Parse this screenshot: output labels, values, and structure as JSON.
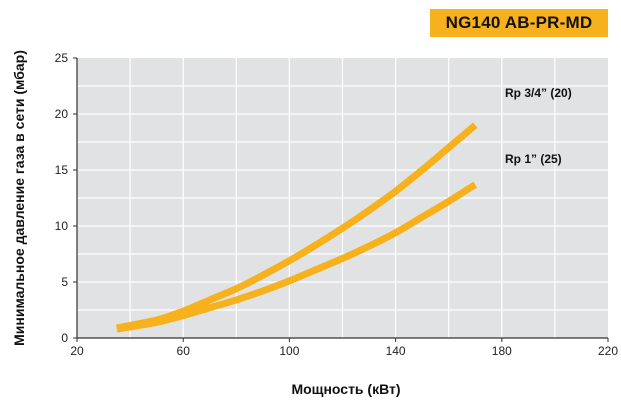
{
  "header": {
    "model_badge": "NG140 AB-PR-MD"
  },
  "colors": {
    "curve": "#f7b11d",
    "plot_bg": "#e1e2e3",
    "grid": "#ffffff",
    "badge": "#f7b11d"
  },
  "chart_data": {
    "type": "line",
    "title": "",
    "xlabel": "Мощность (кВт)",
    "ylabel": "Минимальное давление газа в сети (мбар)",
    "xlim": [
      20,
      220
    ],
    "ylim": [
      0,
      25
    ],
    "x_ticks": [
      20,
      60,
      100,
      140,
      180,
      220
    ],
    "y_ticks": [
      0,
      5,
      10,
      15,
      20,
      25
    ],
    "x_grid_step": 20,
    "y_grid_step": 2.5,
    "grid": true,
    "series": [
      {
        "name": "Rp 3/4” (20)",
        "x": [
          35,
          50,
          60,
          70,
          80,
          90,
          100,
          110,
          120,
          130,
          140,
          150,
          160,
          170
        ],
        "values": [
          0.9,
          1.6,
          2.4,
          3.4,
          4.4,
          5.6,
          6.9,
          8.3,
          9.8,
          11.4,
          13.1,
          15.0,
          17.0,
          19.0
        ]
      },
      {
        "name": "Rp 1” (25)",
        "x": [
          35,
          50,
          60,
          70,
          80,
          90,
          100,
          110,
          120,
          130,
          140,
          150,
          160,
          170
        ],
        "values": [
          0.8,
          1.4,
          2.0,
          2.7,
          3.4,
          4.2,
          5.1,
          6.1,
          7.1,
          8.2,
          9.4,
          10.8,
          12.2,
          13.7
        ]
      }
    ]
  }
}
